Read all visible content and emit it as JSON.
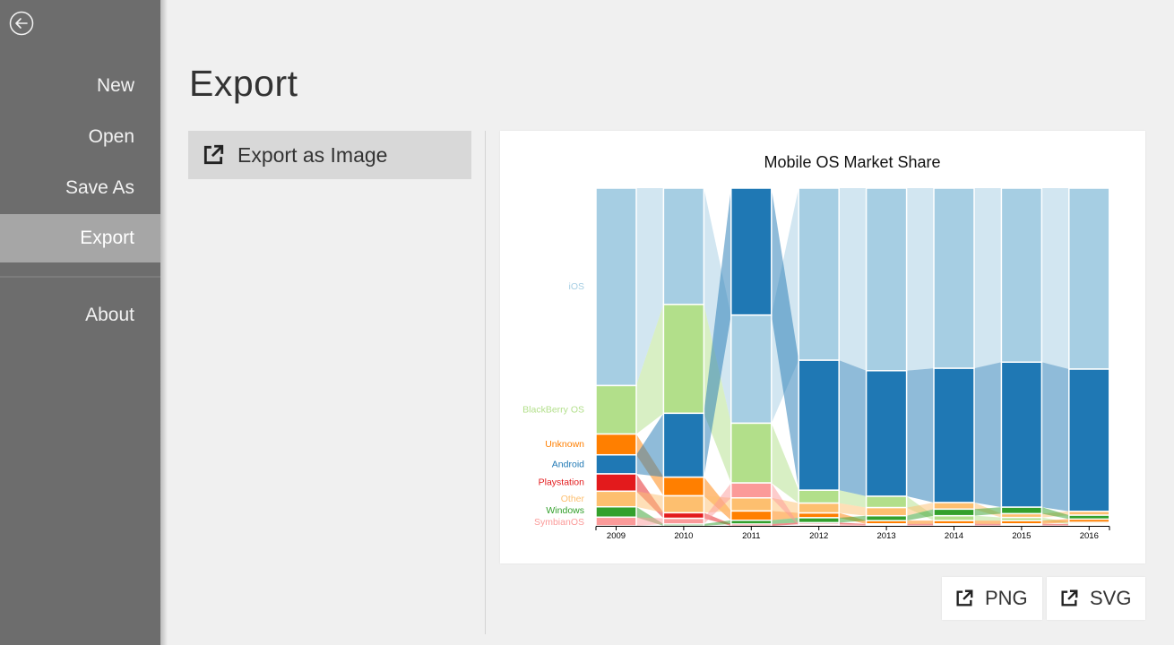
{
  "sidebar": {
    "items": [
      {
        "label": "New",
        "active": false
      },
      {
        "label": "Open",
        "active": false
      },
      {
        "label": "Save As",
        "active": false
      },
      {
        "label": "Export",
        "active": true
      },
      {
        "label": "About",
        "active": false
      }
    ]
  },
  "main": {
    "title": "Export",
    "options": [
      {
        "label": "Export as Image",
        "icon": "external-link-icon"
      }
    ],
    "buttons": {
      "png_label": "PNG",
      "svg_label": "SVG"
    }
  },
  "chart_data": {
    "type": "bar",
    "title": "Mobile OS Market Share",
    "categories": [
      "2009",
      "2010",
      "2011",
      "2012",
      "2013",
      "2014",
      "2015",
      "2016"
    ],
    "stacking": "ranked by share each year, largest on top; ribbons connect each OS between years",
    "ylim": [
      0,
      1
    ],
    "series": [
      {
        "name": "iOS",
        "color": "#a6cee3",
        "values": [
          0.57,
          0.31,
          0.29,
          0.53,
          0.56,
          0.55,
          0.54,
          0.56
        ]
      },
      {
        "name": "BlackBerry OS",
        "color": "#b2df8a",
        "values": [
          0.14,
          0.29,
          0.16,
          0.04,
          0.035,
          0.015,
          0.01,
          0.005
        ]
      },
      {
        "name": "Unknown",
        "color": "#ff7f00",
        "values": [
          0.06,
          0.05,
          0.025,
          0.015,
          0.01,
          0.01,
          0.01,
          0.01
        ]
      },
      {
        "name": "Android",
        "color": "#1f78b4",
        "values": [
          0.055,
          0.17,
          0.34,
          0.4,
          0.385,
          0.41,
          0.45,
          0.44
        ]
      },
      {
        "name": "Playstation",
        "color": "#e31a1c",
        "values": [
          0.05,
          0.015,
          0.005,
          0.005,
          0.003,
          0.003,
          0.003,
          0.003
        ]
      },
      {
        "name": "Other",
        "color": "#fdbf6f",
        "values": [
          0.045,
          0.045,
          0.035,
          0.03,
          0.025,
          0.02,
          0.012,
          0.012
        ]
      },
      {
        "name": "Windows",
        "color": "#33a02c",
        "values": [
          0.03,
          0.005,
          0.01,
          0.015,
          0.015,
          0.02,
          0.02,
          0.012
        ]
      },
      {
        "name": "SymbianOS",
        "color": "#fb9a99",
        "values": [
          0.025,
          0.015,
          0.04,
          0.005,
          0.003,
          0.003,
          0.003,
          0.003
        ]
      }
    ]
  }
}
